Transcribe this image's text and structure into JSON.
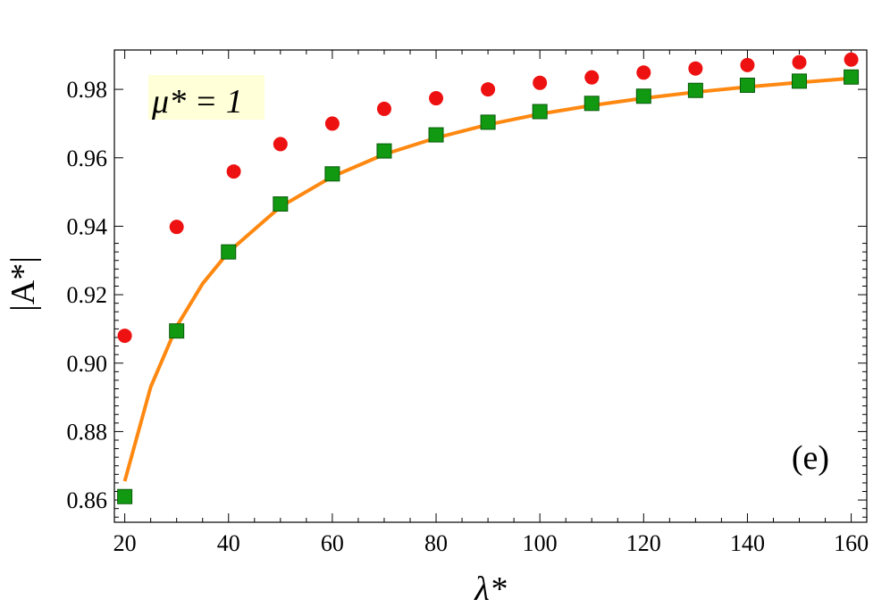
{
  "chart_data": {
    "type": "scatter",
    "xlabel": "λ*",
    "ylabel": "|A*|",
    "xlim": [
      18,
      163
    ],
    "ylim": [
      0.8535,
      0.9915
    ],
    "x_ticks": [
      20,
      40,
      60,
      80,
      100,
      120,
      140,
      160
    ],
    "y_ticks": [
      0.86,
      0.88,
      0.9,
      0.92,
      0.94,
      0.96,
      0.98
    ],
    "y_tick_labels": [
      "0.86",
      "0.88",
      "0.90",
      "0.92",
      "0.94",
      "0.96",
      "0.98"
    ],
    "grid": false,
    "annotations": [
      {
        "text": "μ* = 1",
        "position": "top-left",
        "background": "#ffffd8"
      },
      {
        "text": "(e)",
        "position": "bottom-right"
      }
    ],
    "series": [
      {
        "marker": "circle",
        "color": "#ee1111",
        "points": [
          [
            20,
            0.908
          ],
          [
            30,
            0.9398
          ],
          [
            41,
            0.956
          ],
          [
            50,
            0.964
          ],
          [
            60,
            0.97
          ],
          [
            70,
            0.9743
          ],
          [
            80,
            0.9774
          ],
          [
            90,
            0.98
          ],
          [
            100,
            0.9819
          ],
          [
            110,
            0.9835
          ],
          [
            120,
            0.9849
          ],
          [
            130,
            0.9861
          ],
          [
            140,
            0.9871
          ],
          [
            150,
            0.9879
          ],
          [
            160,
            0.9887
          ]
        ]
      },
      {
        "marker": "square",
        "color": "#119911",
        "points": [
          [
            20,
            0.861
          ],
          [
            30,
            0.9094
          ],
          [
            40,
            0.9325
          ],
          [
            50,
            0.9465
          ],
          [
            60,
            0.9553
          ],
          [
            70,
            0.962
          ],
          [
            80,
            0.9667
          ],
          [
            90,
            0.9704
          ],
          [
            100,
            0.9735
          ],
          [
            110,
            0.9759
          ],
          [
            120,
            0.978
          ],
          [
            130,
            0.9797
          ],
          [
            140,
            0.9812
          ],
          [
            150,
            0.9824
          ],
          [
            160,
            0.9836
          ]
        ]
      },
      {
        "marker": "line",
        "color": "#ff8811",
        "points": [
          [
            20,
            0.8655
          ],
          [
            25,
            0.893
          ],
          [
            30,
            0.9107
          ],
          [
            35,
            0.9232
          ],
          [
            40,
            0.9325
          ],
          [
            50,
            0.9457
          ],
          [
            60,
            0.9545
          ],
          [
            70,
            0.961
          ],
          [
            80,
            0.9658
          ],
          [
            90,
            0.9697
          ],
          [
            100,
            0.9728
          ],
          [
            110,
            0.9753
          ],
          [
            120,
            0.9774
          ],
          [
            130,
            0.9792
          ],
          [
            140,
            0.9807
          ],
          [
            150,
            0.982
          ],
          [
            160,
            0.9832
          ]
        ]
      }
    ]
  }
}
